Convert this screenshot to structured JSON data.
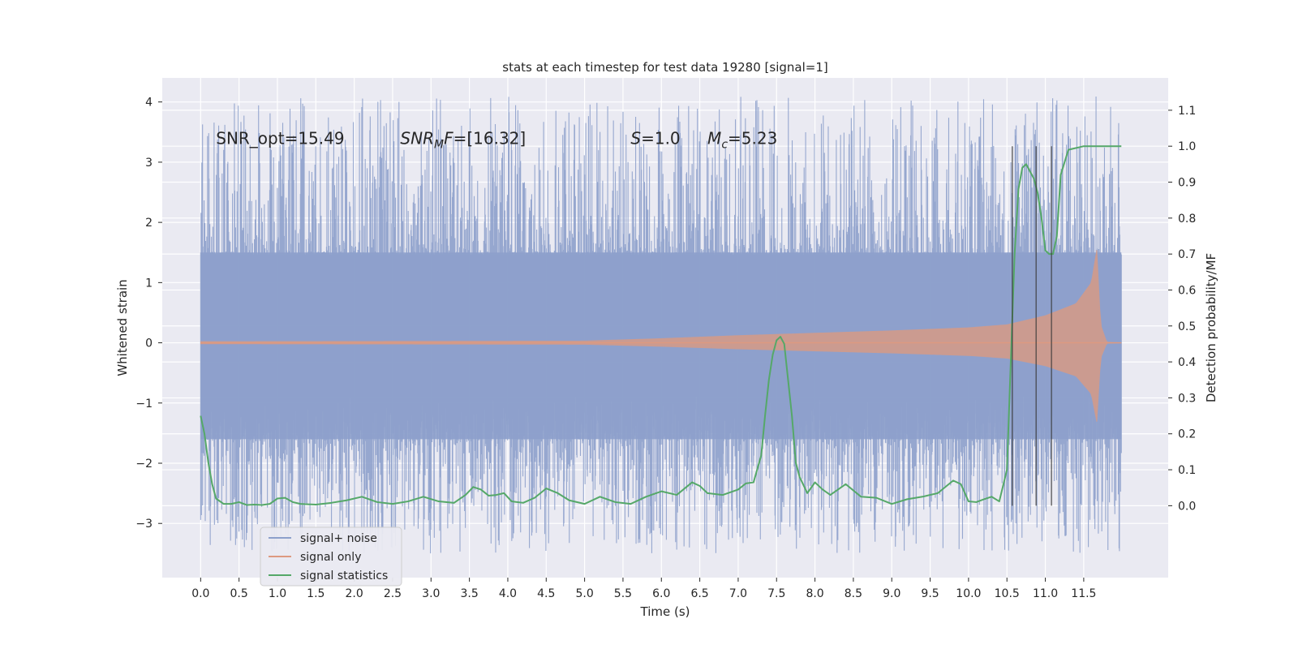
{
  "chart_data": {
    "type": "line",
    "title": "stats at each timestep for test data 19280 [signal=1]",
    "xlabel": "Time (s)",
    "ylabel": "Whitened strain",
    "y2label": "Detection probability/MF",
    "xlim": [
      -0.5,
      12.6
    ],
    "ylim": [
      -3.9,
      4.4
    ],
    "y2lim": [
      -0.2,
      1.19
    ],
    "x_ticks": [
      0.0,
      0.5,
      1.0,
      1.5,
      2.0,
      2.5,
      3.0,
      3.5,
      4.0,
      4.5,
      5.0,
      5.5,
      6.0,
      6.5,
      7.0,
      7.5,
      8.0,
      8.5,
      9.0,
      9.5,
      10.0,
      10.5,
      11.0,
      11.5
    ],
    "x_tick_labels": [
      "0.0",
      "0.5",
      "1.0",
      "1.5",
      "2.0",
      "2.5",
      "3.0",
      "3.5",
      "4.0",
      "4.5",
      "5.0",
      "5.5",
      "6.0",
      "6.5",
      "7.0",
      "7.5",
      "8.0",
      "8.5",
      "9.0",
      "9.5",
      "10.0",
      "10.5",
      "11.0",
      "11.5"
    ],
    "y_ticks": [
      -3,
      -2,
      -1,
      0,
      1,
      2,
      3,
      4
    ],
    "y_tick_labels": [
      "−3",
      "−2",
      "−1",
      "0",
      "1",
      "2",
      "3",
      "4"
    ],
    "y2_ticks": [
      0.0,
      0.1,
      0.2,
      0.3,
      0.4,
      0.5,
      0.6,
      0.7,
      0.8,
      0.9,
      1.0,
      1.1
    ],
    "y2_tick_labels": [
      "0.0",
      "0.1",
      "0.2",
      "0.3",
      "0.4",
      "0.5",
      "0.6",
      "0.7",
      "0.8",
      "0.9",
      "1.0",
      "1.1"
    ],
    "grid": true,
    "legend_position": "lower-left",
    "annotations": [
      {
        "text": "SNR_opt=15.49",
        "x": 0.2,
        "y": 3.3
      },
      {
        "text": "SNR_MF=[16.32]",
        "x": 2.6,
        "y": 3.3
      },
      {
        "text": "S=1.0",
        "x": 5.6,
        "y": 3.3
      },
      {
        "text": "M_c=5.23",
        "x": 6.6,
        "y": 3.3
      }
    ],
    "vertical_lines": [
      {
        "x": 10.57,
        "y2_range": [
          0.0,
          1.0
        ]
      },
      {
        "x": 10.88,
        "y2_range": [
          0.0,
          1.0
        ]
      },
      {
        "x": 11.08,
        "y2_range": [
          0.0,
          1.0
        ]
      }
    ],
    "series": [
      {
        "name": "signal+ noise",
        "axis": "left",
        "color": "#8da0cb",
        "kind": "noise-band",
        "x_range": [
          0.0,
          11.99
        ],
        "envelope": {
          "low": -1.6,
          "high": 1.5,
          "spike_min": -3.5,
          "spike_max": 4.1
        }
      },
      {
        "name": "signal only",
        "axis": "left",
        "color": "#dd9a80",
        "kind": "chirp",
        "x_range": [
          0.0,
          11.99
        ],
        "amplitude": [
          [
            0.0,
            0.02
          ],
          [
            5.0,
            0.03
          ],
          [
            6.0,
            0.07
          ],
          [
            7.0,
            0.12
          ],
          [
            8.0,
            0.16
          ],
          [
            9.0,
            0.2
          ],
          [
            10.0,
            0.25
          ],
          [
            10.5,
            0.3
          ],
          [
            11.0,
            0.45
          ],
          [
            11.4,
            0.65
          ],
          [
            11.6,
            1.0
          ],
          [
            11.67,
            1.55
          ],
          [
            11.72,
            0.3
          ],
          [
            11.8,
            0.01
          ],
          [
            11.99,
            0.0
          ]
        ]
      },
      {
        "name": "signal statistics",
        "axis": "right",
        "color": "#55a868",
        "x": [
          0.0,
          0.05,
          0.1,
          0.15,
          0.2,
          0.3,
          0.4,
          0.5,
          0.6,
          0.7,
          0.8,
          0.9,
          1.0,
          1.1,
          1.2,
          1.3,
          1.5,
          1.7,
          1.9,
          2.1,
          2.3,
          2.5,
          2.7,
          2.9,
          3.1,
          3.3,
          3.45,
          3.55,
          3.65,
          3.75,
          3.85,
          3.95,
          4.05,
          4.2,
          4.35,
          4.5,
          4.65,
          4.8,
          5.0,
          5.2,
          5.4,
          5.6,
          5.8,
          6.0,
          6.2,
          6.4,
          6.5,
          6.6,
          6.8,
          7.0,
          7.1,
          7.2,
          7.3,
          7.35,
          7.4,
          7.45,
          7.5,
          7.55,
          7.6,
          7.65,
          7.7,
          7.75,
          7.8,
          7.9,
          8.0,
          8.1,
          8.2,
          8.4,
          8.6,
          8.8,
          9.0,
          9.2,
          9.4,
          9.6,
          9.8,
          9.9,
          10.0,
          10.1,
          10.2,
          10.3,
          10.4,
          10.5,
          10.55,
          10.6,
          10.65,
          10.7,
          10.75,
          10.8,
          10.85,
          10.9,
          10.95,
          11.0,
          11.05,
          11.1,
          11.15,
          11.2,
          11.3,
          11.5,
          11.7,
          11.9,
          11.99
        ],
        "values": [
          0.25,
          0.2,
          0.12,
          0.06,
          0.02,
          0.005,
          0.005,
          0.01,
          0.002,
          0.003,
          0.002,
          0.005,
          0.02,
          0.022,
          0.01,
          0.005,
          0.003,
          0.008,
          0.015,
          0.025,
          0.01,
          0.005,
          0.012,
          0.025,
          0.012,
          0.008,
          0.03,
          0.052,
          0.045,
          0.028,
          0.03,
          0.035,
          0.012,
          0.008,
          0.022,
          0.048,
          0.035,
          0.015,
          0.005,
          0.025,
          0.01,
          0.005,
          0.025,
          0.04,
          0.03,
          0.065,
          0.055,
          0.035,
          0.03,
          0.045,
          0.062,
          0.065,
          0.14,
          0.25,
          0.35,
          0.42,
          0.46,
          0.47,
          0.45,
          0.35,
          0.25,
          0.12,
          0.08,
          0.035,
          0.065,
          0.045,
          0.03,
          0.06,
          0.025,
          0.022,
          0.005,
          0.018,
          0.025,
          0.035,
          0.07,
          0.06,
          0.012,
          0.01,
          0.018,
          0.025,
          0.012,
          0.1,
          0.4,
          0.7,
          0.88,
          0.94,
          0.95,
          0.93,
          0.91,
          0.87,
          0.8,
          0.71,
          0.7,
          0.7,
          0.75,
          0.92,
          0.99,
          1.0,
          1.0,
          1.0,
          1.0
        ]
      }
    ]
  }
}
